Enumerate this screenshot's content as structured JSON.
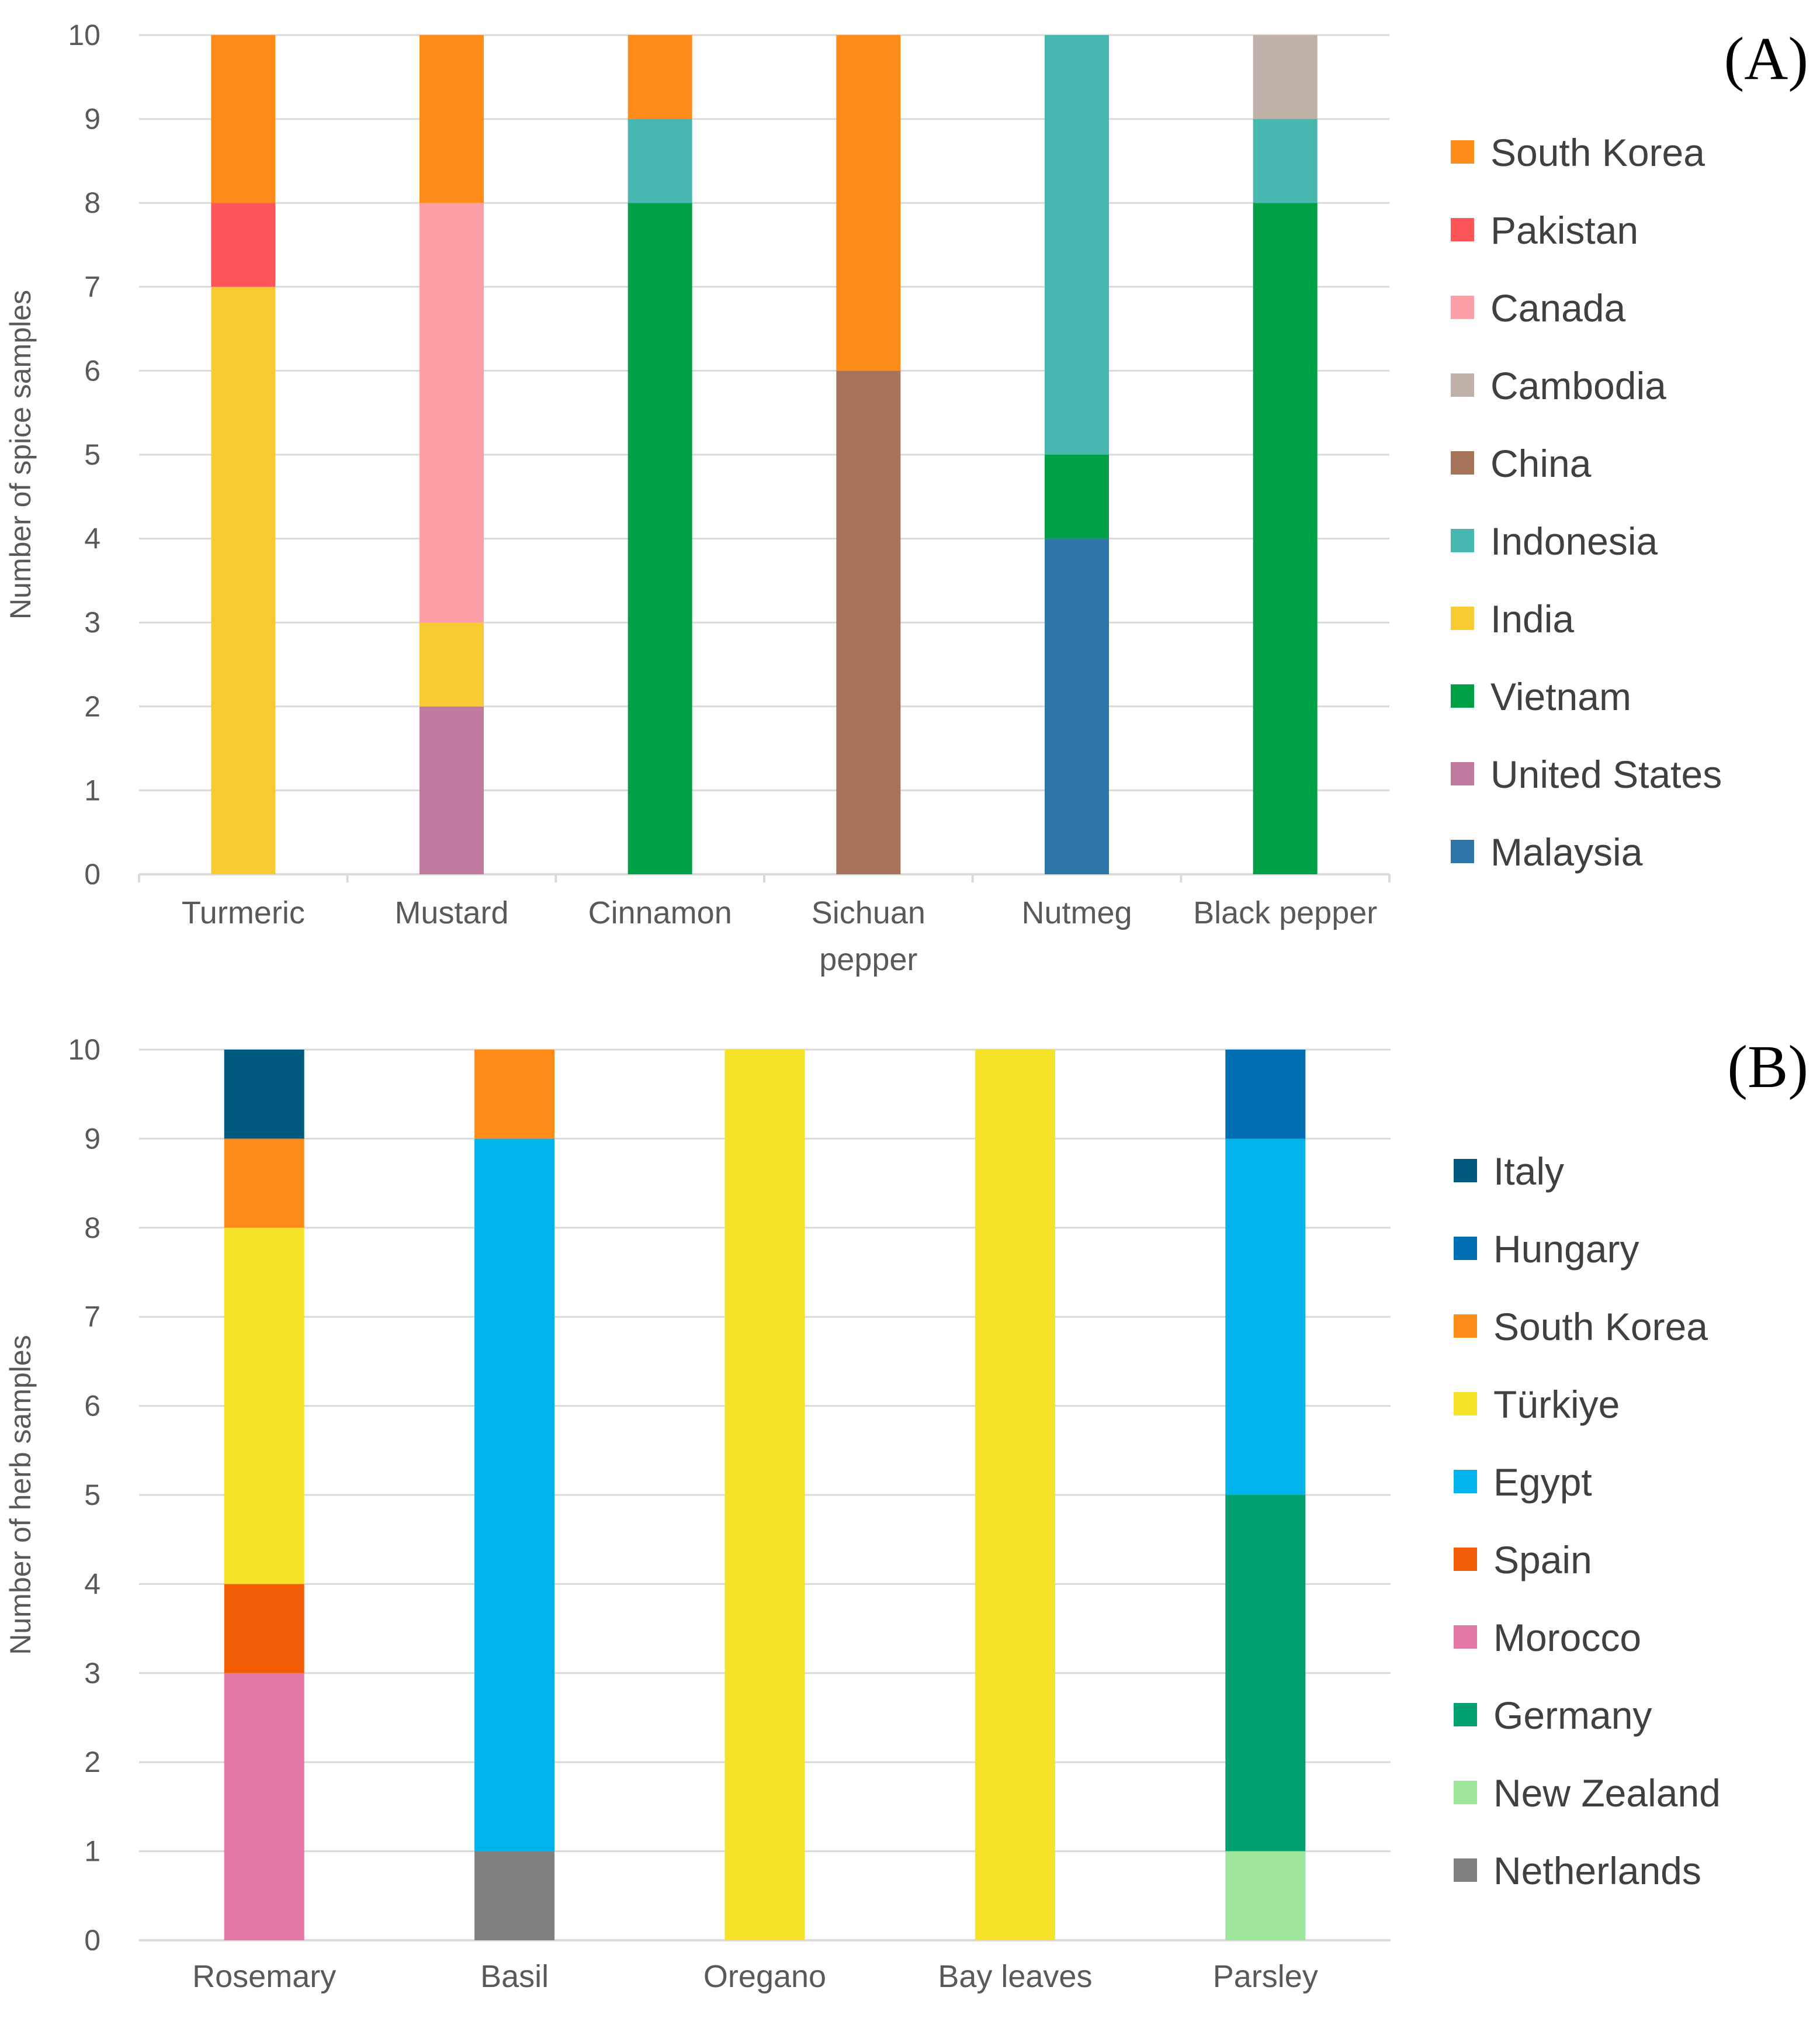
{
  "chart_data": [
    {
      "type": "bar",
      "stacked": true,
      "panel_label": "(A)",
      "ylabel": "Number of spice samples",
      "ylim": [
        0,
        10
      ],
      "yticks": [
        "0",
        "1",
        "2",
        "3",
        "4",
        "5",
        "6",
        "7",
        "8",
        "9",
        "10"
      ],
      "grid": true,
      "legend_position": "right",
      "categories": [
        [
          "Turmeric"
        ],
        [
          "Mustard"
        ],
        [
          "Cinnamon"
        ],
        [
          "Sichuan",
          "pepper"
        ],
        [
          "Nutmeg"
        ],
        [
          "Black pepper"
        ]
      ],
      "series": [
        {
          "name": "Malaysia",
          "color": "#2e75a8",
          "values": [
            0,
            0,
            0,
            0,
            4,
            0
          ]
        },
        {
          "name": "United States",
          "color": "#c27ba0",
          "values": [
            0,
            2,
            0,
            0,
            0,
            0
          ]
        },
        {
          "name": "Vietnam",
          "color": "#00a046",
          "values": [
            0,
            0,
            8,
            0,
            1,
            8
          ]
        },
        {
          "name": "India",
          "color": "#f7c933",
          "values": [
            7,
            1,
            0,
            0,
            0,
            0
          ]
        },
        {
          "name": "Indonesia",
          "color": "#47b8b0",
          "values": [
            0,
            0,
            1,
            0,
            5,
            1
          ]
        },
        {
          "name": "China",
          "color": "#a6735a",
          "values": [
            0,
            0,
            0,
            6,
            0,
            0
          ]
        },
        {
          "name": "Cambodia",
          "color": "#bfb0a8",
          "values": [
            0,
            0,
            0,
            0,
            0,
            1
          ]
        },
        {
          "name": "Canada",
          "color": "#fe9ea6",
          "values": [
            0,
            5,
            0,
            0,
            0,
            0
          ]
        },
        {
          "name": "Pakistan",
          "color": "#fe5558",
          "values": [
            1,
            0,
            0,
            0,
            0,
            0
          ]
        },
        {
          "name": "South Korea",
          "color": "#fd8b1a",
          "values": [
            2,
            2,
            1,
            4,
            0,
            0
          ]
        }
      ]
    },
    {
      "type": "bar",
      "stacked": true,
      "panel_label": "(B)",
      "ylabel": "Number of herb samples",
      "ylim": [
        0,
        10
      ],
      "yticks": [
        "0",
        "1",
        "2",
        "3",
        "4",
        "5",
        "6",
        "7",
        "8",
        "9",
        "10"
      ],
      "grid": true,
      "legend_position": "right",
      "categories": [
        [
          "Rosemary"
        ],
        [
          "Basil"
        ],
        [
          "Oregano"
        ],
        [
          "Bay leaves"
        ],
        [
          "Parsley"
        ]
      ],
      "series": [
        {
          "name": "Netherlands",
          "color": "#808080",
          "values": [
            0,
            1,
            0,
            0,
            0
          ]
        },
        {
          "name": "New Zealand",
          "color": "#9ee69c",
          "values": [
            0,
            0,
            0,
            0,
            1
          ]
        },
        {
          "name": "Germany",
          "color": "#00a070",
          "values": [
            0,
            0,
            0,
            0,
            4
          ]
        },
        {
          "name": "Morocco",
          "color": "#e377a8",
          "values": [
            3,
            0,
            0,
            0,
            0
          ]
        },
        {
          "name": "Spain",
          "color": "#f25c05",
          "values": [
            1,
            0,
            0,
            0,
            0
          ]
        },
        {
          "name": "Egypt",
          "color": "#00b3ec",
          "values": [
            0,
            8,
            0,
            0,
            4
          ]
        },
        {
          "name": "Türkiye",
          "color": "#f5e327",
          "values": [
            4,
            0,
            10,
            10,
            0
          ]
        },
        {
          "name": "South Korea",
          "color": "#fd8b1a",
          "values": [
            1,
            1,
            0,
            0,
            0
          ]
        },
        {
          "name": "Hungary",
          "color": "#006fb4",
          "values": [
            0,
            0,
            0,
            0,
            1
          ]
        },
        {
          "name": "Italy",
          "color": "#005a80",
          "values": [
            1,
            0,
            0,
            0,
            0
          ]
        }
      ]
    }
  ]
}
